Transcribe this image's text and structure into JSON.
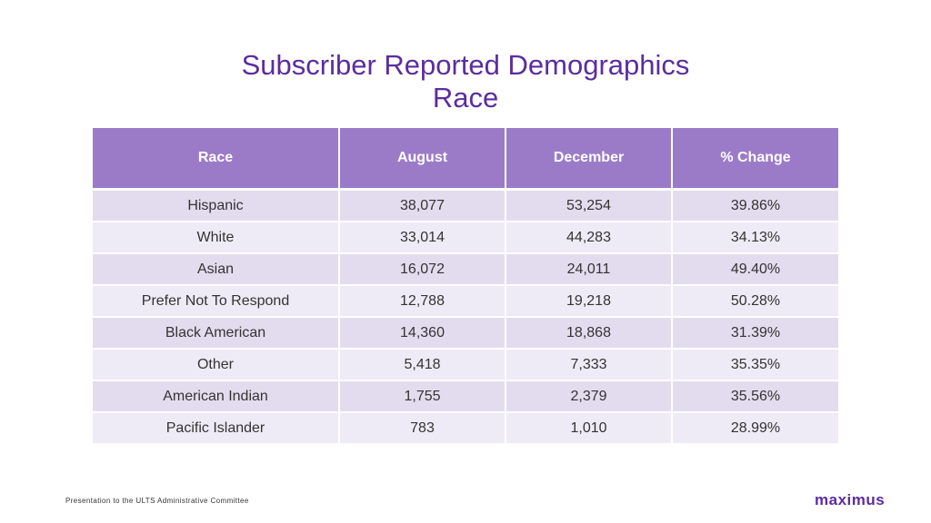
{
  "title": {
    "line1": "Subscriber Reported Demographics",
    "line2": "Race"
  },
  "table": {
    "headers": [
      "Race",
      "August",
      "December",
      "% Change"
    ],
    "rows": [
      [
        "Hispanic",
        "38,077",
        "53,254",
        "39.86%"
      ],
      [
        "White",
        "33,014",
        "44,283",
        "34.13%"
      ],
      [
        "Asian",
        "16,072",
        "24,011",
        "49.40%"
      ],
      [
        "Prefer Not To Respond",
        "12,788",
        "19,218",
        "50.28%"
      ],
      [
        "Black American",
        "14,360",
        "18,868",
        "31.39%"
      ],
      [
        "Other",
        "5,418",
        "7,333",
        "35.35%"
      ],
      [
        "American Indian",
        "1,755",
        "2,379",
        "35.56%"
      ],
      [
        "Pacific Islander",
        "783",
        "1,010",
        "28.99%"
      ]
    ]
  },
  "footer": {
    "text": "Presentation to the ULTS Administrative Committee"
  },
  "logo": {
    "text": "maximus"
  },
  "colors": {
    "title": "#5b2d9e",
    "header_bg": "#9b7bc8",
    "row_odd": "#e3dcee",
    "row_even": "#efebf6"
  }
}
